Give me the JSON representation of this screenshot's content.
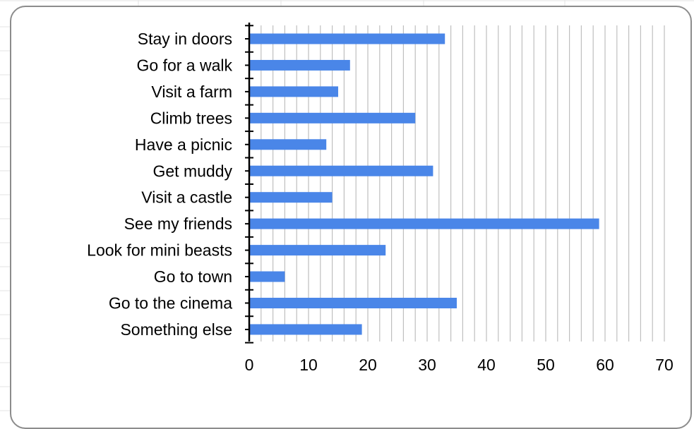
{
  "colors": {
    "bar": "#4a86e8",
    "gridline": "#bfbfbf",
    "axis": "#000000",
    "frame_border": "#8c8c8c",
    "sheet_gridline": "#e3e3e3"
  },
  "chart_data": {
    "type": "bar",
    "orientation": "horizontal",
    "categories": [
      "Stay in doors",
      "Go for a walk",
      "Visit a farm",
      "Climb trees",
      "Have a picnic",
      "Get muddy",
      "Visit a castle",
      "See my friends",
      "Look for mini beasts",
      "Go to town",
      "Go to the cinema",
      "Something else"
    ],
    "values": [
      33,
      17,
      15,
      28,
      13,
      31,
      14,
      59,
      23,
      6,
      35,
      19
    ],
    "x_ticks": [
      "0",
      "10",
      "20",
      "30",
      "40",
      "50",
      "60",
      "70"
    ],
    "xlim": [
      0,
      70
    ],
    "minor_grid_step": 2,
    "grid": true,
    "legend": "none"
  }
}
